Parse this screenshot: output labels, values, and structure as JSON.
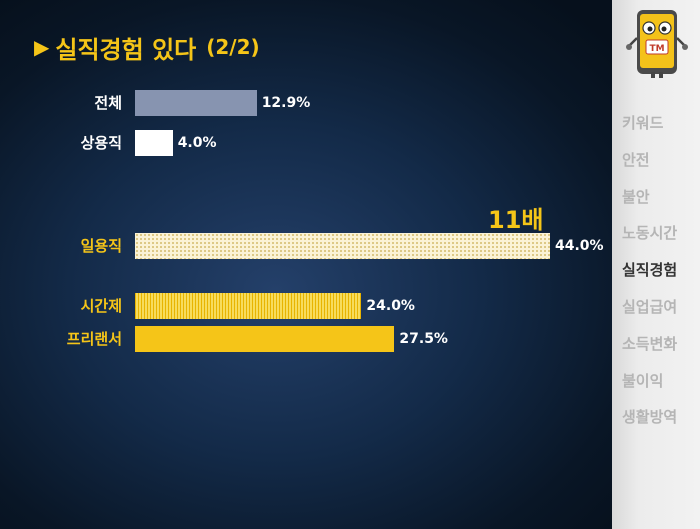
{
  "title": {
    "marker": "▶",
    "main": "실직경험 있다",
    "sub": "(2/2)"
  },
  "chart_data": {
    "type": "bar",
    "orientation": "horizontal",
    "unit": "%",
    "categories": [
      "전체",
      "상용직",
      "일용직",
      "시간제",
      "프리랜서"
    ],
    "values": [
      12.9,
      4.0,
      44.0,
      24.0,
      27.5
    ],
    "value_labels": [
      "12.9%",
      "4.0%",
      "44.0%",
      "24.0%",
      "27.5%"
    ],
    "bar_styles": [
      "solid-grayblue",
      "solid-white",
      "dotted-cream",
      "striped-yellow",
      "solid-yellow"
    ],
    "colors": [
      "#8794b0",
      "#ffffff",
      "#fbf3d6",
      "#f7dc5c",
      "#f5c518"
    ],
    "label_colors": [
      "#ffffff",
      "#ffffff",
      "#f5c518",
      "#f5c518",
      "#f5c518"
    ],
    "annotation": "11배",
    "xlim": [
      0,
      44
    ]
  },
  "sidebar": {
    "items": [
      {
        "label": "키워드",
        "active": false
      },
      {
        "label": "안전",
        "active": false
      },
      {
        "label": "불안",
        "active": false
      },
      {
        "label": "노동시간",
        "active": false
      },
      {
        "label": "실직경험",
        "active": true
      },
      {
        "label": "실업급여",
        "active": false
      },
      {
        "label": "소득변화",
        "active": false
      },
      {
        "label": "불이익",
        "active": false
      },
      {
        "label": "생활방역",
        "active": false
      }
    ],
    "active_color": "#333333",
    "inactive_color": "#b5b5b5"
  },
  "mascot": {
    "icon": "phone-mascot-icon",
    "badge": "TM"
  }
}
